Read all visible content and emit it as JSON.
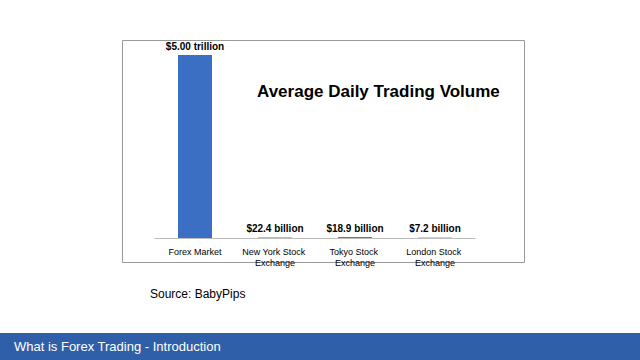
{
  "chart_data": {
    "type": "bar",
    "title": "Average Daily Trading Volume",
    "categories": [
      "Forex Market",
      "New York Stock Exchange",
      "Tokyo Stock Exchange",
      "London Stock Exchange"
    ],
    "values": [
      5000,
      22.4,
      18.9,
      7.2
    ],
    "value_labels": [
      "$5.00 trillion",
      "$22.4 billion",
      "$18.9 billion",
      "$7.2 billion"
    ],
    "colors": [
      "#3a6fc4",
      "#9ab878",
      "#5b2d9c",
      "#cc1111"
    ],
    "ylim": [
      0,
      5000
    ],
    "data_labels": true,
    "tick_labels": "x",
    "grid": false
  },
  "source": "Source: BabyPips",
  "footer": "What is Forex Trading - Introduction"
}
